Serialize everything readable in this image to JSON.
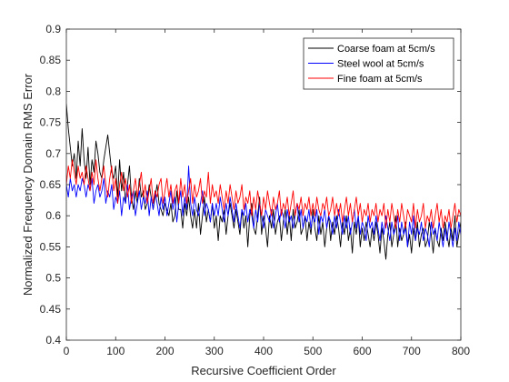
{
  "chart_data": {
    "type": "line",
    "xlabel": "Recursive Coefficient Order",
    "ylabel": "Normalized Frequency Domain RMS Error",
    "xlim": [
      0,
      800
    ],
    "ylim": [
      0.4,
      0.9
    ],
    "xticks": [
      0,
      100,
      200,
      300,
      400,
      500,
      600,
      700,
      800
    ],
    "yticks": [
      0.4,
      0.45,
      0.5,
      0.55,
      0.6,
      0.65,
      0.7,
      0.75,
      0.8,
      0.85,
      0.9
    ],
    "grid": false,
    "legend_position": "top-right",
    "x_step": 4,
    "series": [
      {
        "name": "Coarse foam at 5cm/s",
        "color": "#000000",
        "values": [
          0.78,
          0.74,
          0.71,
          0.68,
          0.7,
          0.66,
          0.72,
          0.68,
          0.74,
          0.69,
          0.66,
          0.71,
          0.65,
          0.69,
          0.67,
          0.72,
          0.7,
          0.67,
          0.66,
          0.69,
          0.71,
          0.73,
          0.7,
          0.67,
          0.66,
          0.68,
          0.63,
          0.69,
          0.64,
          0.67,
          0.62,
          0.65,
          0.68,
          0.63,
          0.61,
          0.64,
          0.62,
          0.66,
          0.63,
          0.64,
          0.61,
          0.62,
          0.65,
          0.63,
          0.61,
          0.63,
          0.65,
          0.62,
          0.61,
          0.6,
          0.62,
          0.61,
          0.6,
          0.62,
          0.59,
          0.6,
          0.64,
          0.61,
          0.61,
          0.58,
          0.62,
          0.6,
          0.63,
          0.6,
          0.58,
          0.61,
          0.58,
          0.62,
          0.57,
          0.6,
          0.63,
          0.59,
          0.61,
          0.59,
          0.62,
          0.58,
          0.6,
          0.56,
          0.6,
          0.59,
          0.61,
          0.57,
          0.6,
          0.62,
          0.6,
          0.58,
          0.61,
          0.59,
          0.57,
          0.61,
          0.58,
          0.6,
          0.55,
          0.6,
          0.62,
          0.58,
          0.57,
          0.6,
          0.63,
          0.57,
          0.6,
          0.58,
          0.55,
          0.6,
          0.58,
          0.61,
          0.57,
          0.59,
          0.6,
          0.56,
          0.59,
          0.61,
          0.57,
          0.6,
          0.56,
          0.61,
          0.58,
          0.59,
          0.61,
          0.57,
          0.58,
          0.6,
          0.56,
          0.59,
          0.57,
          0.61,
          0.58,
          0.56,
          0.6,
          0.57,
          0.59,
          0.55,
          0.58,
          0.6,
          0.56,
          0.59,
          0.57,
          0.6,
          0.58,
          0.55,
          0.59,
          0.57,
          0.6,
          0.56,
          0.58,
          0.54,
          0.59,
          0.57,
          0.6,
          0.55,
          0.58,
          0.56,
          0.59,
          0.57,
          0.55,
          0.58,
          0.56,
          0.59,
          0.57,
          0.54,
          0.58,
          0.56,
          0.53,
          0.57,
          0.59,
          0.55,
          0.57,
          0.6,
          0.55,
          0.58,
          0.56,
          0.57,
          0.59,
          0.55,
          0.57,
          0.54,
          0.58,
          0.56,
          0.59,
          0.55,
          0.57,
          0.58,
          0.55,
          0.56,
          0.59,
          0.57,
          0.54,
          0.58,
          0.56,
          0.55,
          0.58,
          0.56,
          0.59,
          0.57,
          0.55,
          0.58,
          0.56,
          0.6,
          0.55,
          0.57,
          0.59,
          0.56,
          0.54,
          0.57,
          0.6,
          0.55
        ]
      },
      {
        "name": "Steel wool at 5cm/s",
        "color": "#0000ff",
        "values": [
          0.65,
          0.63,
          0.66,
          0.64,
          0.65,
          0.63,
          0.65,
          0.64,
          0.66,
          0.65,
          0.63,
          0.65,
          0.64,
          0.66,
          0.62,
          0.64,
          0.65,
          0.63,
          0.64,
          0.66,
          0.62,
          0.64,
          0.63,
          0.65,
          0.61,
          0.63,
          0.62,
          0.64,
          0.6,
          0.63,
          0.62,
          0.65,
          0.61,
          0.63,
          0.64,
          0.6,
          0.62,
          0.64,
          0.61,
          0.63,
          0.62,
          0.64,
          0.6,
          0.63,
          0.61,
          0.64,
          0.62,
          0.6,
          0.63,
          0.61,
          0.63,
          0.6,
          0.62,
          0.64,
          0.61,
          0.63,
          0.59,
          0.62,
          0.64,
          0.6,
          0.63,
          0.61,
          0.68,
          0.62,
          0.6,
          0.63,
          0.61,
          0.6,
          0.62,
          0.64,
          0.6,
          0.62,
          0.61,
          0.59,
          0.62,
          0.6,
          0.62,
          0.6,
          0.63,
          0.61,
          0.59,
          0.62,
          0.6,
          0.63,
          0.61,
          0.59,
          0.62,
          0.6,
          0.58,
          0.61,
          0.6,
          0.62,
          0.59,
          0.61,
          0.6,
          0.58,
          0.61,
          0.59,
          0.62,
          0.6,
          0.58,
          0.61,
          0.6,
          0.59,
          0.61,
          0.58,
          0.6,
          0.62,
          0.59,
          0.61,
          0.6,
          0.58,
          0.61,
          0.59,
          0.6,
          0.58,
          0.6,
          0.62,
          0.59,
          0.61,
          0.58,
          0.6,
          0.59,
          0.61,
          0.58,
          0.6,
          0.59,
          0.61,
          0.57,
          0.6,
          0.59,
          0.61,
          0.58,
          0.6,
          0.59,
          0.57,
          0.6,
          0.58,
          0.61,
          0.59,
          0.57,
          0.6,
          0.58,
          0.6,
          0.57,
          0.59,
          0.61,
          0.58,
          0.6,
          0.57,
          0.59,
          0.58,
          0.56,
          0.6,
          0.58,
          0.59,
          0.57,
          0.6,
          0.58,
          0.56,
          0.59,
          0.57,
          0.6,
          0.58,
          0.56,
          0.59,
          0.57,
          0.58,
          0.6,
          0.56,
          0.59,
          0.57,
          0.58,
          0.55,
          0.59,
          0.57,
          0.6,
          0.56,
          0.58,
          0.57,
          0.59,
          0.56,
          0.58,
          0.57,
          0.55,
          0.59,
          0.57,
          0.58,
          0.56,
          0.59,
          0.57,
          0.55,
          0.58,
          0.56,
          0.59,
          0.57,
          0.55,
          0.58,
          0.56,
          0.59,
          0.57,
          0.56,
          0.58,
          0.55,
          0.57
        ]
      },
      {
        "name": "Fine foam at 5cm/s",
        "color": "#ff0000",
        "values": [
          0.65,
          0.68,
          0.66,
          0.69,
          0.67,
          0.65,
          0.68,
          0.66,
          0.67,
          0.65,
          0.68,
          0.66,
          0.64,
          0.67,
          0.65,
          0.69,
          0.66,
          0.64,
          0.66,
          0.68,
          0.65,
          0.63,
          0.66,
          0.68,
          0.64,
          0.66,
          0.62,
          0.65,
          0.67,
          0.64,
          0.66,
          0.63,
          0.65,
          0.62,
          0.64,
          0.66,
          0.63,
          0.65,
          0.67,
          0.63,
          0.65,
          0.62,
          0.64,
          0.66,
          0.62,
          0.64,
          0.63,
          0.65,
          0.66,
          0.62,
          0.64,
          0.66,
          0.63,
          0.65,
          0.62,
          0.64,
          0.65,
          0.62,
          0.66,
          0.63,
          0.65,
          0.62,
          0.64,
          0.66,
          0.62,
          0.65,
          0.63,
          0.64,
          0.66,
          0.62,
          0.64,
          0.63,
          0.67,
          0.62,
          0.65,
          0.63,
          0.64,
          0.62,
          0.65,
          0.63,
          0.61,
          0.64,
          0.62,
          0.65,
          0.63,
          0.61,
          0.64,
          0.62,
          0.63,
          0.65,
          0.61,
          0.63,
          0.62,
          0.64,
          0.6,
          0.63,
          0.61,
          0.64,
          0.62,
          0.6,
          0.63,
          0.61,
          0.64,
          0.62,
          0.6,
          0.63,
          0.61,
          0.62,
          0.64,
          0.6,
          0.62,
          0.61,
          0.63,
          0.6,
          0.62,
          0.64,
          0.6,
          0.62,
          0.61,
          0.63,
          0.6,
          0.62,
          0.61,
          0.63,
          0.6,
          0.62,
          0.6,
          0.63,
          0.61,
          0.6,
          0.62,
          0.61,
          0.63,
          0.6,
          0.61,
          0.63,
          0.6,
          0.62,
          0.6,
          0.62,
          0.59,
          0.61,
          0.63,
          0.6,
          0.62,
          0.59,
          0.61,
          0.63,
          0.6,
          0.62,
          0.59,
          0.61,
          0.6,
          0.62,
          0.59,
          0.61,
          0.6,
          0.62,
          0.59,
          0.61,
          0.6,
          0.62,
          0.58,
          0.61,
          0.59,
          0.62,
          0.6,
          0.58,
          0.61,
          0.59,
          0.62,
          0.6,
          0.58,
          0.61,
          0.6,
          0.59,
          0.62,
          0.58,
          0.61,
          0.59,
          0.6,
          0.62,
          0.58,
          0.6,
          0.59,
          0.61,
          0.58,
          0.6,
          0.62,
          0.59,
          0.61,
          0.58,
          0.6,
          0.59,
          0.61,
          0.58,
          0.6,
          0.62,
          0.59,
          0.61,
          0.6,
          0.58,
          0.6,
          0.62,
          0.6
        ]
      }
    ]
  }
}
